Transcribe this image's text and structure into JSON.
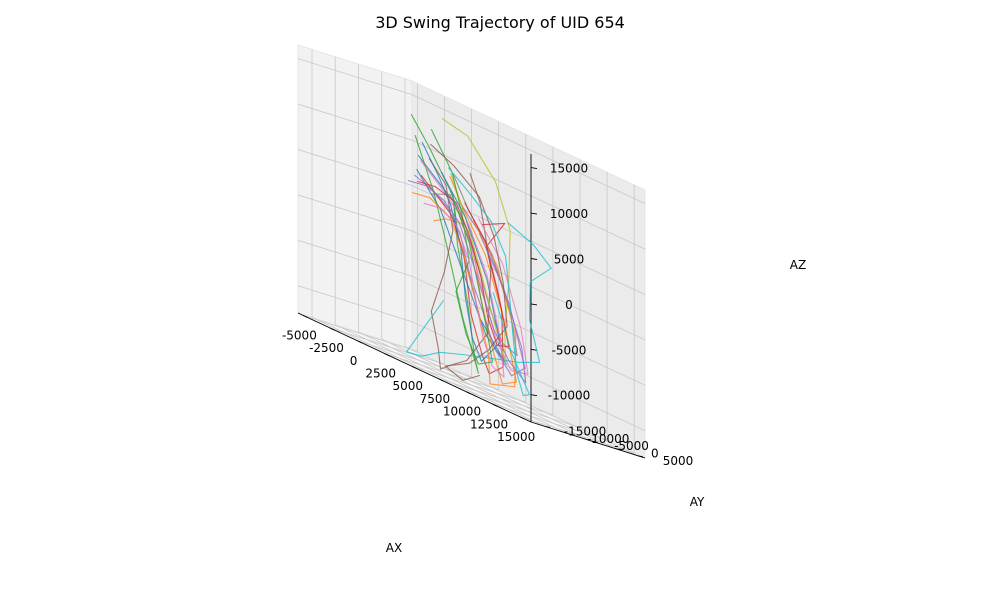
{
  "chart_data": {
    "type": "line",
    "title": "3D Swing Trajectory of UID 654",
    "xlabel": "AX",
    "ylabel": "AY",
    "zlabel": "AZ",
    "xlim": [
      -5500,
      16000
    ],
    "ylim": [
      -18000,
      6500
    ],
    "zlim": [
      -13000,
      16500
    ],
    "xticks": [
      -5000,
      -2500,
      0,
      2500,
      5000,
      7500,
      10000,
      12500,
      15000
    ],
    "yticks": [
      -15000,
      -10000,
      -5000,
      0,
      5000
    ],
    "zticks": [
      -10000,
      -5000,
      0,
      5000,
      10000,
      15000
    ],
    "grid": true,
    "legend": "none",
    "series": [
      {
        "color": "#1f77b4",
        "points": [
          [
            -3000,
            2000,
            9000
          ],
          [
            -1000,
            0,
            8000
          ],
          [
            2000,
            -2000,
            6000
          ],
          [
            3500,
            -4500,
            2500
          ],
          [
            5500,
            -6500,
            -1500
          ],
          [
            7000,
            -8000,
            -5000
          ],
          [
            9000,
            -9500,
            -7000
          ],
          [
            10500,
            -10500,
            -8500
          ],
          [
            8000,
            -9000,
            -6500
          ],
          [
            4000,
            -5500,
            0
          ],
          [
            1000,
            -2500,
            4500
          ],
          [
            -2500,
            500,
            7500
          ]
        ]
      },
      {
        "color": "#ff7f0e",
        "points": [
          [
            -2000,
            3000,
            2500
          ],
          [
            0,
            1000,
            3500
          ],
          [
            2500,
            -1500,
            4000
          ],
          [
            4500,
            -3500,
            2000
          ],
          [
            6000,
            -5500,
            -3000
          ],
          [
            8000,
            -7500,
            -8000
          ],
          [
            9500,
            -9000,
            -11000
          ],
          [
            11000,
            -9500,
            -10000
          ],
          [
            9000,
            -7500,
            -4000
          ],
          [
            6000,
            -4500,
            2000
          ],
          [
            3000,
            -2000,
            5500
          ],
          [
            1000,
            -500,
            8500
          ]
        ]
      },
      {
        "color": "#2ca02c",
        "points": [
          [
            -4500,
            4000,
            13000
          ],
          [
            -2000,
            2000,
            10500
          ],
          [
            1500,
            -1000,
            6500
          ],
          [
            3000,
            -3500,
            1500
          ],
          [
            5000,
            -6000,
            -4000
          ],
          [
            6500,
            -8000,
            -9500
          ],
          [
            7500,
            -9500,
            -11000
          ],
          [
            5000,
            -7000,
            -6000
          ],
          [
            2000,
            -3500,
            1000
          ],
          [
            -500,
            -500,
            6000
          ],
          [
            -3500,
            2500,
            11000
          ]
        ]
      },
      {
        "color": "#d62728",
        "points": [
          [
            -2500,
            1500,
            7000
          ],
          [
            0,
            -500,
            5500
          ],
          [
            2000,
            -2500,
            4500
          ],
          [
            4000,
            -4500,
            1000
          ],
          [
            5500,
            -6500,
            -5000
          ],
          [
            7000,
            -7500,
            -9000
          ],
          [
            8500,
            -9500,
            -10500
          ],
          [
            10000,
            -10000,
            -9000
          ],
          [
            9000,
            -8000,
            -3000
          ],
          [
            6500,
            -5500,
            3000
          ],
          [
            8000,
            -5000,
            6500
          ],
          [
            5000,
            -3000,
            5000
          ]
        ]
      },
      {
        "color": "#9467bd",
        "points": [
          [
            -4000,
            3500,
            6500
          ],
          [
            -1500,
            1500,
            6000
          ],
          [
            1000,
            -1000,
            5000
          ],
          [
            3000,
            -3000,
            3000
          ],
          [
            5000,
            -5500,
            -1000
          ],
          [
            7000,
            -7500,
            -4000
          ],
          [
            9000,
            -9500,
            -7500
          ],
          [
            11000,
            -10500,
            -9500
          ],
          [
            12000,
            -10000,
            -8000
          ],
          [
            9500,
            -7500,
            -2000
          ],
          [
            6000,
            -4500,
            3500
          ],
          [
            2500,
            -1500,
            6000
          ]
        ]
      },
      {
        "color": "#8c564b",
        "points": [
          [
            -500,
            -1500,
            9500
          ],
          [
            1500,
            -2500,
            7500
          ],
          [
            3000,
            -4500,
            3000
          ],
          [
            2000,
            -4000,
            -2000
          ],
          [
            1000,
            -4500,
            -7000
          ],
          [
            2500,
            -6500,
            -10500
          ],
          [
            4000,
            -9500,
            -12500
          ],
          [
            5500,
            -11000,
            -11500
          ],
          [
            7500,
            -12000,
            -10000
          ],
          [
            9000,
            -11000,
            -6000
          ],
          [
            8000,
            -8000,
            1000
          ],
          [
            5500,
            -4500,
            7500
          ],
          [
            3500,
            -2000,
            10000
          ]
        ]
      },
      {
        "color": "#e377c2",
        "points": [
          [
            -3000,
            2500,
            8500
          ],
          [
            -500,
            500,
            7000
          ],
          [
            2500,
            -2000,
            5000
          ],
          [
            4500,
            -4000,
            2000
          ],
          [
            6500,
            -6000,
            -2500
          ],
          [
            8500,
            -8000,
            -6500
          ],
          [
            10500,
            -9500,
            -9000
          ],
          [
            12500,
            -10500,
            -8500
          ],
          [
            11000,
            -8500,
            -4000
          ],
          [
            8000,
            -5500,
            2000
          ],
          [
            4500,
            -2500,
            5500
          ]
        ]
      },
      {
        "color": "#7f7f7f",
        "points": [
          [
            -1500,
            1500,
            5500
          ],
          [
            1000,
            -500,
            6500
          ],
          [
            3500,
            -3000,
            4000
          ],
          [
            5500,
            -5000,
            500
          ],
          [
            7500,
            -7000,
            -3500
          ],
          [
            9500,
            -9000,
            -6500
          ],
          [
            11500,
            -10500,
            -7000
          ],
          [
            10500,
            -9500,
            -3000
          ],
          [
            7500,
            -6500,
            2500
          ],
          [
            4000,
            -3500,
            6000
          ],
          [
            1500,
            -1000,
            9000
          ]
        ]
      },
      {
        "color": "#bcbd22",
        "points": [
          [
            500,
            -1000,
            14500
          ],
          [
            3500,
            -2500,
            14000
          ],
          [
            6500,
            -3500,
            10500
          ],
          [
            8500,
            -5000,
            6000
          ],
          [
            9000,
            -6500,
            0
          ],
          [
            9500,
            -8500,
            -5000
          ],
          [
            10000,
            -9500,
            -8500
          ],
          [
            8500,
            -8000,
            -5500
          ],
          [
            6000,
            -5500,
            0
          ],
          [
            3500,
            -3000,
            5000
          ],
          [
            1500,
            -1500,
            9000
          ]
        ]
      },
      {
        "color": "#17becf",
        "points": [
          [
            3000,
            -6500,
            -5000
          ],
          [
            1000,
            -6000,
            -9000
          ],
          [
            0,
            -7500,
            -12500
          ],
          [
            2500,
            -10000,
            -12000
          ],
          [
            5000,
            -12000,
            -10500
          ],
          [
            7500,
            -13000,
            -9500
          ],
          [
            10000,
            -13000,
            -8500
          ],
          [
            12500,
            -12500,
            -7500
          ],
          [
            14000,
            -11500,
            -6500
          ],
          [
            12000,
            -9000,
            -2500
          ],
          [
            11000,
            -6500,
            1500
          ],
          [
            12500,
            -5500,
            4000
          ],
          [
            10000,
            -3500,
            5500
          ],
          [
            7000,
            -2000,
            6500
          ]
        ]
      },
      {
        "color": "#1f77b4",
        "points": [
          [
            -3500,
            4000,
            10500
          ],
          [
            -1000,
            1500,
            8000
          ],
          [
            1500,
            -1500,
            5500
          ],
          [
            3500,
            -4000,
            1500
          ],
          [
            5000,
            -6500,
            -3500
          ],
          [
            6500,
            -8500,
            -7500
          ],
          [
            8000,
            -10000,
            -9500
          ],
          [
            9500,
            -9500,
            -6500
          ],
          [
            7000,
            -6500,
            -500
          ],
          [
            3500,
            -3000,
            5000
          ],
          [
            0,
            0,
            8500
          ]
        ]
      },
      {
        "color": "#ff7f0e",
        "points": [
          [
            -4000,
            3000,
            4500
          ],
          [
            -1500,
            1000,
            5000
          ],
          [
            1500,
            -1500,
            4000
          ],
          [
            3500,
            -3500,
            1000
          ],
          [
            6000,
            -6000,
            -4500
          ],
          [
            8000,
            -8500,
            -8500
          ],
          [
            9000,
            -10500,
            -11500
          ],
          [
            11500,
            -11000,
            -10500
          ],
          [
            10500,
            -8500,
            -5000
          ],
          [
            7500,
            -5500,
            1500
          ],
          [
            4000,
            -2500,
            5000
          ]
        ]
      },
      {
        "color": "#2ca02c",
        "points": [
          [
            -2000,
            2500,
            12500
          ],
          [
            1000,
            0,
            9000
          ],
          [
            3000,
            -2500,
            5000
          ],
          [
            4500,
            -4500,
            500
          ],
          [
            3500,
            -5000,
            -3500
          ],
          [
            5500,
            -7500,
            -7500
          ],
          [
            7500,
            -9500,
            -10000
          ],
          [
            9000,
            -10000,
            -9000
          ],
          [
            7000,
            -7500,
            -3500
          ],
          [
            4500,
            -4500,
            2500
          ],
          [
            1500,
            -1500,
            7000
          ]
        ]
      },
      {
        "color": "#d62728",
        "points": [
          [
            -3500,
            3000,
            6000
          ],
          [
            -1000,
            1000,
            6500
          ],
          [
            2000,
            -1500,
            6000
          ],
          [
            4000,
            -3500,
            3500
          ],
          [
            6000,
            -5500,
            -500
          ],
          [
            7500,
            -7500,
            -4500
          ],
          [
            9000,
            -9000,
            -7000
          ],
          [
            10500,
            -10000,
            -6500
          ],
          [
            8500,
            -7500,
            -1500
          ],
          [
            6000,
            -4500,
            3500
          ],
          [
            3000,
            -2000,
            6500
          ]
        ]
      },
      {
        "color": "#9467bd",
        "points": [
          [
            -5000,
            4500,
            5500
          ],
          [
            -2500,
            2500,
            6000
          ],
          [
            0,
            500,
            5500
          ],
          [
            2500,
            -2000,
            4000
          ],
          [
            4500,
            -4500,
            1500
          ],
          [
            6500,
            -6500,
            -2000
          ],
          [
            8500,
            -8500,
            -5500
          ],
          [
            10500,
            -10000,
            -8000
          ],
          [
            12500,
            -11000,
            -9500
          ],
          [
            11500,
            -9500,
            -6000
          ],
          [
            8500,
            -6500,
            -500
          ],
          [
            5000,
            -3500,
            4000
          ]
        ]
      },
      {
        "color": "#8c564b",
        "points": [
          [
            -1000,
            0,
            11000
          ],
          [
            2000,
            -2000,
            10000
          ],
          [
            5000,
            -3500,
            8000
          ],
          [
            7000,
            -5000,
            4500
          ],
          [
            8500,
            -6500,
            0
          ],
          [
            9500,
            -8000,
            -4500
          ],
          [
            8000,
            -8500,
            -8000
          ],
          [
            6000,
            -8000,
            -10500
          ],
          [
            4000,
            -8500,
            -12000
          ],
          [
            6500,
            -10500,
            -12500
          ],
          [
            8500,
            -11500,
            -11000
          ]
        ]
      },
      {
        "color": "#17becf",
        "points": [
          [
            1500,
            -2000,
            9500
          ],
          [
            4000,
            -3500,
            8000
          ],
          [
            6500,
            -4500,
            6000
          ],
          [
            8500,
            -6000,
            3000
          ],
          [
            9500,
            -7500,
            -1000
          ],
          [
            10500,
            -9000,
            -5500
          ],
          [
            11500,
            -10500,
            -9000
          ],
          [
            12500,
            -11500,
            -11000
          ],
          [
            13500,
            -12500,
            -10500
          ],
          [
            11000,
            -10500,
            -7000
          ],
          [
            8000,
            -7500,
            -1500
          ]
        ]
      },
      {
        "color": "#e377c2",
        "points": [
          [
            -2500,
            2000,
            4000
          ],
          [
            0,
            0,
            4500
          ],
          [
            2500,
            -2500,
            3500
          ],
          [
            4500,
            -4500,
            500
          ],
          [
            6000,
            -6500,
            -3500
          ],
          [
            7500,
            -8500,
            -7000
          ],
          [
            9000,
            -10000,
            -9500
          ],
          [
            10500,
            -11000,
            -10000
          ],
          [
            9500,
            -9500,
            -6000
          ],
          [
            7000,
            -6500,
            0
          ],
          [
            4000,
            -3500,
            4500
          ]
        ]
      }
    ]
  }
}
